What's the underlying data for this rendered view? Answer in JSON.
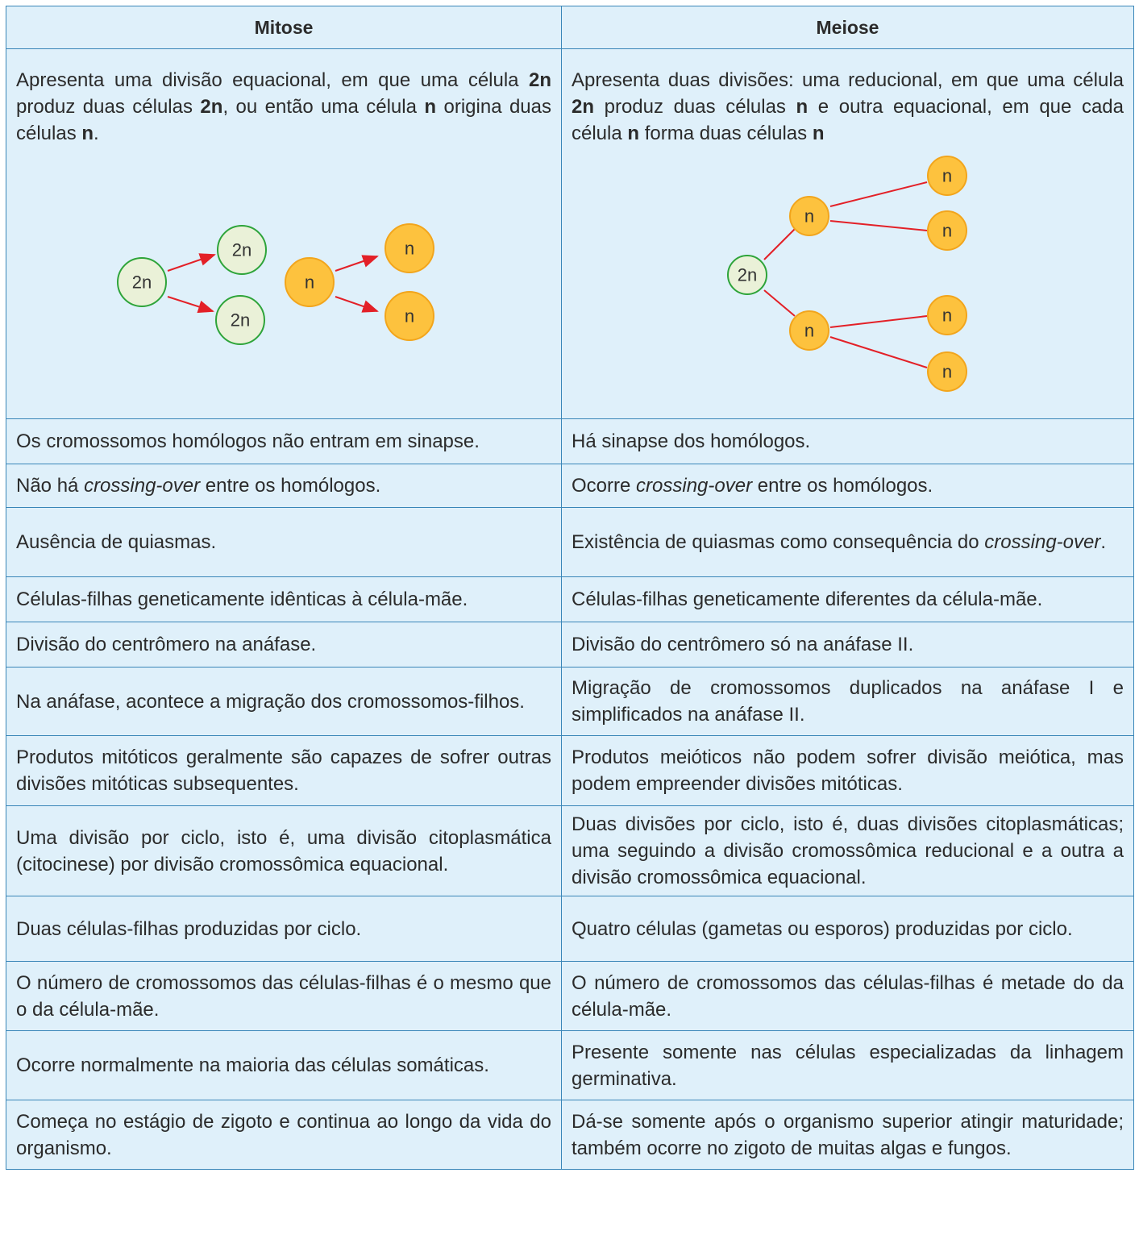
{
  "table": {
    "header": [
      "Mitose",
      "Meiose"
    ],
    "rows": [
      [
        [
          {
            "text": "Apresenta uma divisão equacional, em que uma célula "
          },
          {
            "text": "2n",
            "style": "bold"
          },
          {
            "text": " produz duas células "
          },
          {
            "text": "2n",
            "style": "bold"
          },
          {
            "text": ", ou então uma célula "
          },
          {
            "text": "n",
            "style": "bold"
          },
          {
            "text": " origina duas células "
          },
          {
            "text": "n",
            "style": "bold"
          },
          {
            "text": "."
          }
        ],
        [
          {
            "text": "Apresenta duas divisões: uma reducional, em que uma célula "
          },
          {
            "text": "2n",
            "style": "bold"
          },
          {
            "text": " produz duas células "
          },
          {
            "text": "n",
            "style": "bold"
          },
          {
            "text": " e outra equacional, em que cada célula "
          },
          {
            "text": "n",
            "style": "bold"
          },
          {
            "text": " forma duas células "
          },
          {
            "text": "n",
            "style": "bold"
          }
        ]
      ],
      [
        "Os cromossomos homólogos não entram em sinapse.",
        "Há sinapse dos homólogos."
      ],
      [
        [
          {
            "text": "Não há "
          },
          {
            "text": "crossing-over",
            "style": "italic"
          },
          {
            "text": " entre os homólogos."
          }
        ],
        [
          {
            "text": "Ocorre "
          },
          {
            "text": "crossing-over",
            "style": "italic"
          },
          {
            "text": " entre os homólogos."
          }
        ]
      ],
      [
        "Ausência de quiasmas.",
        [
          {
            "text": "Existência de quiasmas como consequência do "
          },
          {
            "text": "crossing-over",
            "style": "italic"
          },
          {
            "text": "."
          }
        ]
      ],
      [
        "Células-filhas geneticamente idênticas à célula-mãe.",
        "Células-filhas geneticamente diferentes da célula-mãe."
      ],
      [
        "Divisão do centrômero na anáfase.",
        "Divisão do centrômero só na anáfase II."
      ],
      [
        "Na anáfase, acontece a migração dos cromossomos-filhos.",
        "Migração de cromossomos duplicados na anáfase I e simplificados na anáfase II."
      ],
      [
        "Produtos mitóticos geralmente são capazes de sofrer outras divisões mitóticas subsequentes.",
        "Produtos meióticos não podem sofrer divisão meiótica, mas podem empreender divisões mitóticas."
      ],
      [
        "Uma divisão por ciclo, isto é, uma divisão citoplasmática (citocinese) por divisão cromossômica equacional.",
        "Duas divisões por ciclo, isto é, duas divisões citoplasmáticas; uma seguindo a divisão cromossômica reducional e a outra a divisão cromossômica equacional."
      ],
      [
        "Duas células-filhas produzidas por ciclo.",
        "Quatro células (gametas ou esporos) produzidas por ciclo."
      ],
      [
        "O número de cromossomos das células-filhas é o mesmo que o da célula-mãe.",
        "O número de cromossomos das células-filhas é metade do da célula-mãe."
      ],
      [
        "Ocorre normalmente na maioria das células somáticas.",
        "Presente somente nas células especializadas da linhagem germinativa."
      ],
      [
        "Começa no estágio de zigoto e continua ao longo da vida do organismo.",
        "Dá-se somente após o organismo superior atingir maturidade; também ocorre no zigoto de muitas algas e fungos."
      ]
    ]
  },
  "diagrams": {
    "mitose": [
      "2n",
      "2n",
      "2n",
      "n",
      "n",
      "n"
    ],
    "meiose": [
      "2n",
      "n",
      "n",
      "n",
      "n",
      "n",
      "n"
    ]
  }
}
